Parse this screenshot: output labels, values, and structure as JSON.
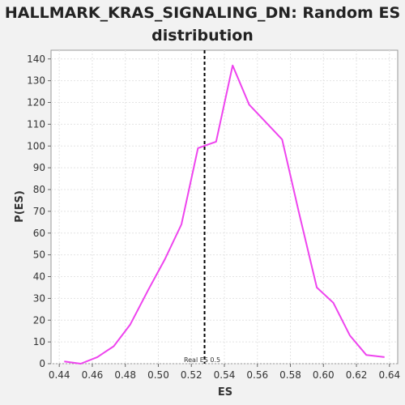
{
  "chart_data": {
    "type": "line",
    "title_line1": "HALLMARK_KRAS_SIGNALING_DN: Random ES",
    "title_line2": "distribution",
    "xlabel": "ES",
    "ylabel": "P(ES)",
    "xlim": [
      0.435,
      0.645
    ],
    "ylim": [
      0,
      144
    ],
    "xticks": [
      0.44,
      0.46,
      0.48,
      0.5,
      0.52,
      0.54,
      0.56,
      0.58,
      0.6,
      0.62,
      0.64
    ],
    "xtick_labels": [
      "0.44",
      "0.46",
      "0.48",
      "0.50",
      "0.52",
      "0.54",
      "0.56",
      "0.58",
      "0.60",
      "0.62",
      "0.64"
    ],
    "yticks": [
      0,
      10,
      20,
      30,
      40,
      50,
      60,
      70,
      80,
      90,
      100,
      110,
      120,
      130,
      140
    ],
    "ytick_labels": [
      "0",
      "10",
      "20",
      "30",
      "40",
      "50",
      "60",
      "70",
      "80",
      "90",
      "100",
      "110",
      "120",
      "130",
      "140"
    ],
    "grid": true,
    "series": [
      {
        "color": "#ee44ee",
        "x": [
          0.443,
          0.453,
          0.463,
          0.473,
          0.483,
          0.494,
          0.504,
          0.514,
          0.524,
          0.535,
          0.545,
          0.555,
          0.565,
          0.575,
          0.585,
          0.596,
          0.606,
          0.616,
          0.626,
          0.637
        ],
        "y": [
          1,
          0,
          3,
          8,
          18,
          34,
          48,
          64,
          99,
          102,
          137,
          119,
          111,
          103,
          70,
          35,
          28,
          13,
          4,
          3
        ]
      }
    ],
    "reference_line": {
      "x": 0.528,
      "label": "Real ES 0.5",
      "style": "dashed",
      "color": "#000000"
    }
  }
}
